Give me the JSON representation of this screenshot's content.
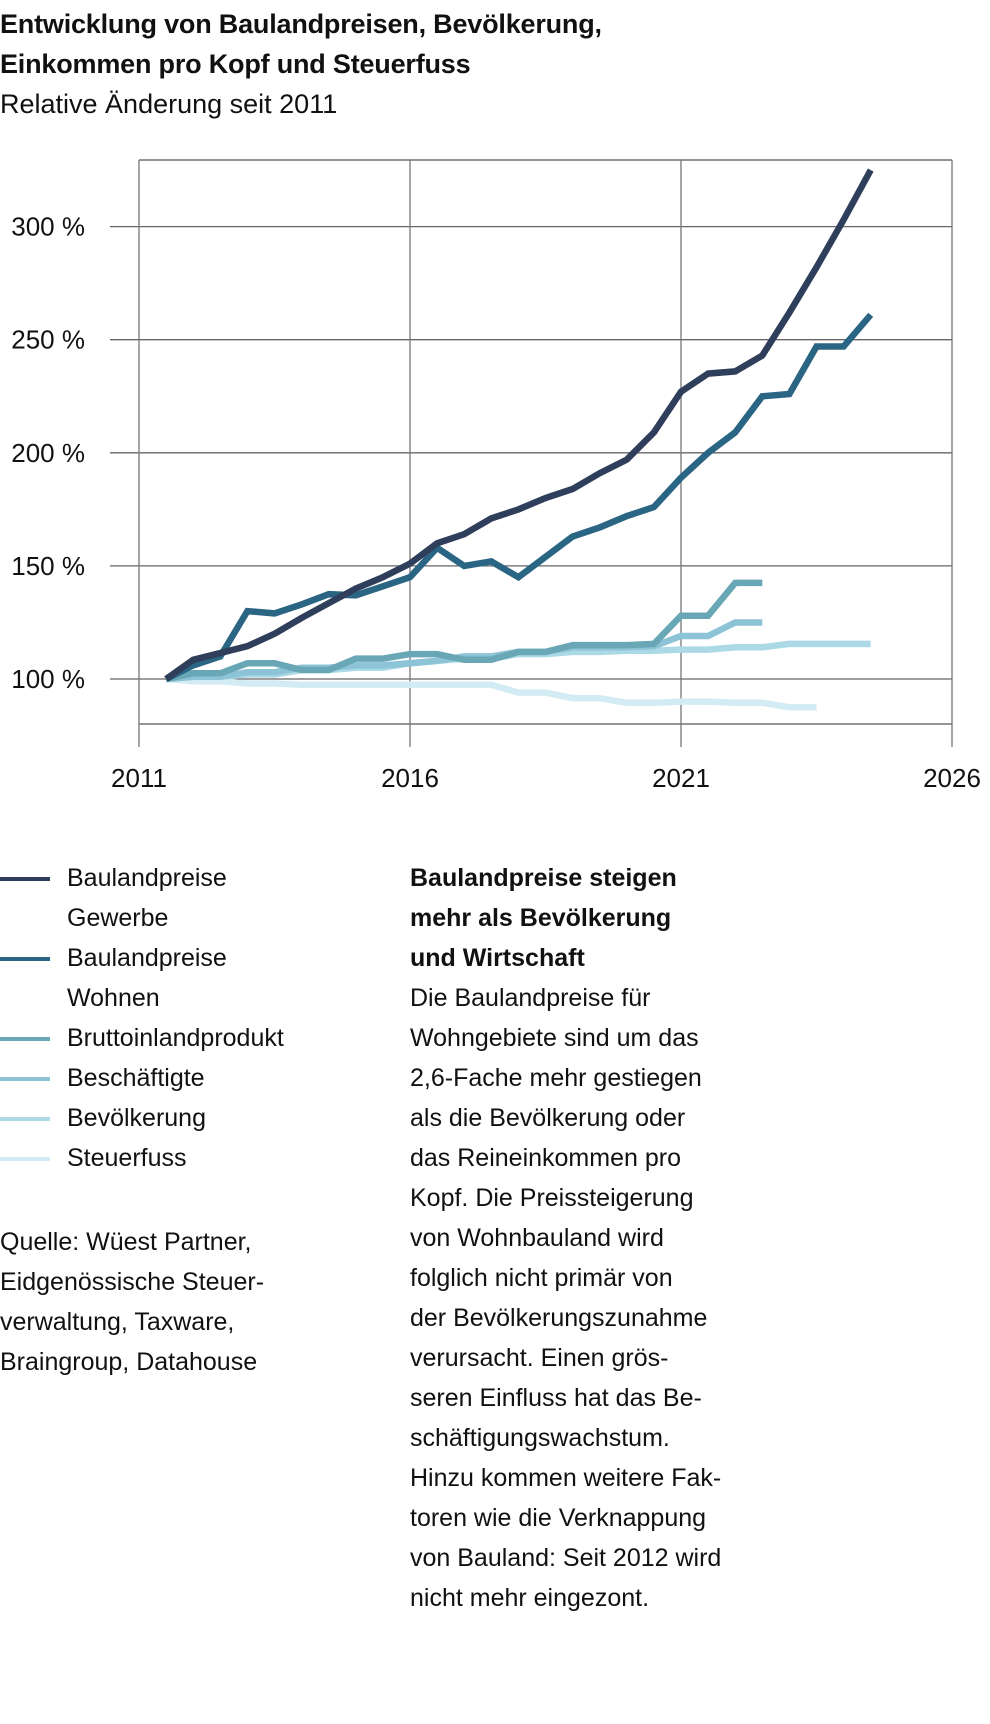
{
  "title": {
    "line1": "Entwicklung von Baulandpreisen, Bevölkerung,",
    "line2": "Einkommen pro Kopf und Steuerfuss",
    "subtitle": "Relative Änderung seit 2011"
  },
  "chart_data": {
    "type": "line",
    "title": "Entwicklung von Baulandpreisen, Bevölkerung, Einkommen pro Kopf und Steuerfuss",
    "subtitle": "Relative Änderung seit 2011",
    "xlabel": "",
    "ylabel": "",
    "xlim": [
      2011,
      2026
    ],
    "ylim": [
      80,
      330
    ],
    "grid": true,
    "legend_position": "bottom-left",
    "x_ticks": [
      2011,
      2016,
      2021,
      2026
    ],
    "x_tick_labels": [
      "2011",
      "2016",
      "2021",
      "2026"
    ],
    "y_ticks": [
      100,
      150,
      200,
      250,
      300
    ],
    "y_tick_labels": [
      "100 %",
      "150 %",
      "200 %",
      "250 %",
      "300 %"
    ],
    "series": [
      {
        "name": "Baulandpreise Gewerbe",
        "color": "#2f3e5a",
        "x": [
          2011.5,
          2012,
          2012.5,
          2013,
          2013.5,
          2014,
          2014.5,
          2015,
          2015.5,
          2016,
          2016.5,
          2017,
          2017.5,
          2018,
          2018.5,
          2019,
          2019.5,
          2020,
          2020.5,
          2021,
          2021.5,
          2022,
          2022.5,
          2023,
          2023.5,
          2024,
          2024.5
        ],
        "values": [
          100,
          108.5,
          111.5,
          114.5,
          120,
          127,
          133.5,
          140,
          145,
          151,
          160,
          164,
          171,
          175,
          180,
          184,
          191,
          197,
          209,
          227,
          235,
          236,
          243,
          262,
          282,
          303,
          325
        ]
      },
      {
        "name": "Baulandpreise Wohnen",
        "color": "#2b6584",
        "x": [
          2011.5,
          2012,
          2012.5,
          2013,
          2013.5,
          2014,
          2014.5,
          2015,
          2015.5,
          2016,
          2016.5,
          2017,
          2017.5,
          2018,
          2018.5,
          2019,
          2019.5,
          2020,
          2020.5,
          2021,
          2021.5,
          2022,
          2022.5,
          2023,
          2023.5,
          2024,
          2024.5
        ],
        "values": [
          100,
          106,
          110,
          130,
          129,
          133,
          137.5,
          137,
          141,
          145,
          158,
          150,
          152,
          145,
          154,
          163,
          167,
          172,
          176,
          189,
          200,
          209,
          225,
          226,
          247,
          247,
          261
        ]
      },
      {
        "name": "Bruttoinlandprodukt",
        "color": "#6aa7b6",
        "x": [
          2011.5,
          2012,
          2012.5,
          2013,
          2013.5,
          2014,
          2014.5,
          2015,
          2015.5,
          2016,
          2016.5,
          2017,
          2017.5,
          2018,
          2018.5,
          2019,
          2019.5,
          2020,
          2020.5,
          2021,
          2021.5,
          2022,
          2022.5
        ],
        "values": [
          100,
          102.5,
          102.5,
          107,
          107,
          104,
          104,
          109,
          109,
          111,
          111,
          108.5,
          108.5,
          112,
          112,
          115,
          115,
          115,
          115.5,
          128,
          128,
          142.5,
          142.5
        ]
      },
      {
        "name": "Beschäftigte",
        "color": "#8cc3d6",
        "x": [
          2011.5,
          2012,
          2012.5,
          2013,
          2013.5,
          2014,
          2014.5,
          2015,
          2015.5,
          2016,
          2016.5,
          2017,
          2017.5,
          2018,
          2018.5,
          2019,
          2019.5,
          2020,
          2020.5,
          2021,
          2021.5,
          2022,
          2022.5
        ],
        "values": [
          100,
          101,
          101,
          103,
          103,
          105,
          105,
          106,
          106,
          107,
          108,
          110,
          110,
          112,
          112,
          114,
          114,
          114,
          114.5,
          119,
          119,
          125,
          125
        ]
      },
      {
        "name": "Bevölkerung",
        "color": "#acd9e6",
        "x": [
          2011.5,
          2012,
          2012.5,
          2013,
          2013.5,
          2014,
          2014.5,
          2015,
          2015.5,
          2016,
          2016.5,
          2017,
          2017.5,
          2018,
          2018.5,
          2019,
          2019.5,
          2020,
          2020.5,
          2021,
          2021.5,
          2022,
          2022.5,
          2023,
          2023.5,
          2024,
          2024.5
        ],
        "values": [
          100,
          101,
          101,
          102,
          102,
          104,
          104,
          105,
          105,
          107,
          108,
          109,
          109,
          111,
          111,
          112,
          112,
          112.5,
          112.5,
          113,
          113,
          114,
          114,
          115.5,
          115.5,
          115.5,
          115.5
        ]
      },
      {
        "name": "Steuerfuss",
        "color": "#d3ebf3",
        "x": [
          2011.5,
          2012,
          2012.5,
          2013,
          2013.5,
          2014,
          2014.5,
          2015,
          2015.5,
          2016,
          2016.5,
          2017,
          2017.5,
          2018,
          2018.5,
          2019,
          2019.5,
          2020,
          2020.5,
          2021,
          2021.5,
          2022,
          2022.5,
          2023,
          2023.5
        ],
        "values": [
          100,
          99,
          99,
          98,
          98,
          97.5,
          97.5,
          97.5,
          97.5,
          97.5,
          97.5,
          97.5,
          97.5,
          94,
          94,
          91.5,
          91.5,
          89.5,
          89.5,
          90,
          90,
          89.5,
          89.5,
          87.5,
          87.5
        ]
      }
    ]
  },
  "legend": {
    "items": [
      {
        "label_lines": [
          "Baulandpreise",
          "Gewerbe"
        ],
        "color": "#2f3e5a"
      },
      {
        "label_lines": [
          "Baulandpreise",
          "Wohnen"
        ],
        "color": "#2b6584"
      },
      {
        "label_lines": [
          "Bruttoinlandprodukt"
        ],
        "color": "#6aa7b6"
      },
      {
        "label_lines": [
          "Beschäftigte"
        ],
        "color": "#8cc3d6"
      },
      {
        "label_lines": [
          "Bevölkerung"
        ],
        "color": "#acd9e6"
      },
      {
        "label_lines": [
          "Steuerfuss"
        ],
        "color": "#d3ebf3"
      }
    ]
  },
  "source": {
    "lines": [
      "Quelle: Wüest Partner,",
      "Eidgenössische Steuer-",
      "verwaltung, Taxware,",
      "Braingroup, Datahouse"
    ]
  },
  "article": {
    "heading_lines": [
      "Baulandpreise steigen",
      "mehr als Bevölkerung",
      "und Wirtschaft"
    ],
    "body_lines": [
      "Die Baulandpreise für",
      "Wohngebiete sind um das",
      "2,6-Fache mehr gestiegen",
      "als die Bevölkerung oder",
      "das Reineinkommen pro",
      "Kopf. Die Preissteigerung",
      "von Wohnbauland wird",
      "folglich nicht primär von",
      "der Bevölkerungszunahme",
      "verursacht. Einen grös-",
      "seren Einfluss hat das Be-",
      "schäftigungswachstum.",
      "Hinzu kommen weitere Fak-",
      "toren wie die Verknappung",
      "von Bauland: Seit 2012 wird",
      "nicht mehr eingezont."
    ]
  }
}
